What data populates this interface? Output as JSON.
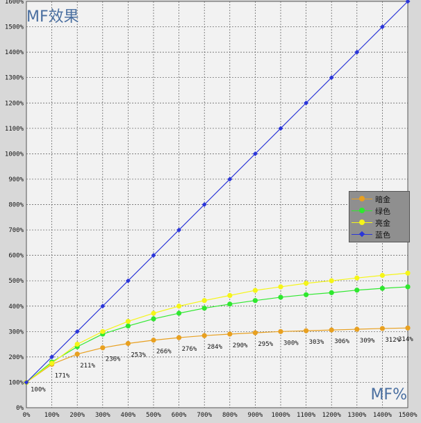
{
  "chart_data": {
    "type": "line",
    "title": "MF效果",
    "xlabel": "MF%",
    "ylabel": "",
    "x": [
      0,
      100,
      200,
      300,
      400,
      500,
      600,
      700,
      800,
      900,
      1000,
      1100,
      1200,
      1300,
      1400,
      1500
    ],
    "x_tick_labels": [
      "0%",
      "100%",
      "200%",
      "300%",
      "400%",
      "500%",
      "600%",
      "700%",
      "800%",
      "900%",
      "1000%",
      "1100%",
      "1200%",
      "1300%",
      "1400%",
      "1500%"
    ],
    "y_tick_labels": [
      "0%",
      "100%",
      "200%",
      "300%",
      "400%",
      "500%",
      "600%",
      "700%",
      "800%",
      "900%",
      "1000%",
      "1100%",
      "1200%",
      "1300%",
      "1400%",
      "1500%",
      "1600%"
    ],
    "xlim": [
      0,
      1500
    ],
    "ylim": [
      0,
      1600
    ],
    "grid": true,
    "legend_position": "right",
    "series": [
      {
        "name": "暗金",
        "color": "#e8a020",
        "marker": "circle",
        "values": [
          100,
          171,
          211,
          236,
          253,
          266,
          276,
          284,
          290,
          295,
          300,
          303,
          306,
          309,
          312,
          314
        ]
      },
      {
        "name": "绿色",
        "color": "#2ee82e",
        "marker": "circle",
        "values": [
          100,
          180,
          240,
          290,
          322,
          350,
          372,
          392,
          408,
          422,
          435,
          445,
          453,
          463,
          470,
          476
        ]
      },
      {
        "name": "亮金",
        "color": "#f5f518",
        "marker": "circle",
        "values": [
          100,
          175,
          250,
          300,
          340,
          372,
          400,
          422,
          442,
          462,
          476,
          490,
          500,
          511,
          521,
          530
        ]
      },
      {
        "name": "蓝色",
        "color": "#2a35d8",
        "marker": "diamond",
        "values": [
          100,
          200,
          300,
          400,
          500,
          600,
          700,
          800,
          900,
          1000,
          1100,
          1200,
          1300,
          1400,
          1500,
          1600
        ]
      }
    ],
    "annotations": {
      "series": "暗金",
      "labels": [
        "100%",
        "171%",
        "211%",
        "236%",
        "253%",
        "266%",
        "276%",
        "284%",
        "290%",
        "295%",
        "300%",
        "303%",
        "306%",
        "309%",
        "312%",
        "314%"
      ]
    }
  }
}
